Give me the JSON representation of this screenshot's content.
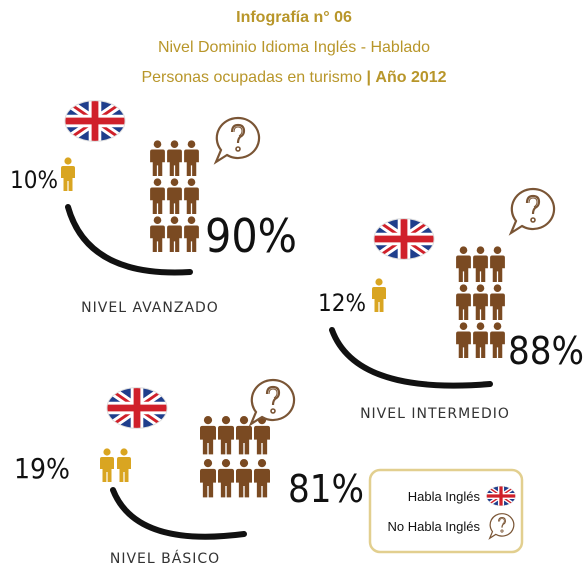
{
  "header": {
    "title": "Infografía n° 06",
    "line1": "Nivel  Dominio Idioma Inglés - Hablado",
    "line2": "Personas ocupadas en turismo",
    "separator": "|",
    "year": "Año 2012"
  },
  "levels": [
    {
      "label": "NIVEL AVANZADO",
      "speaks": "10%",
      "not_speaks": "90%"
    },
    {
      "label": "NIVEL INTERMEDIO",
      "speaks": "12%",
      "not_speaks": "88%"
    },
    {
      "label": "NIVEL BÁSICO",
      "speaks": "19%",
      "not_speaks": "81%"
    }
  ],
  "legend": {
    "speaks": "Habla Inglés",
    "not_speaks": "No Habla Inglés"
  }
}
